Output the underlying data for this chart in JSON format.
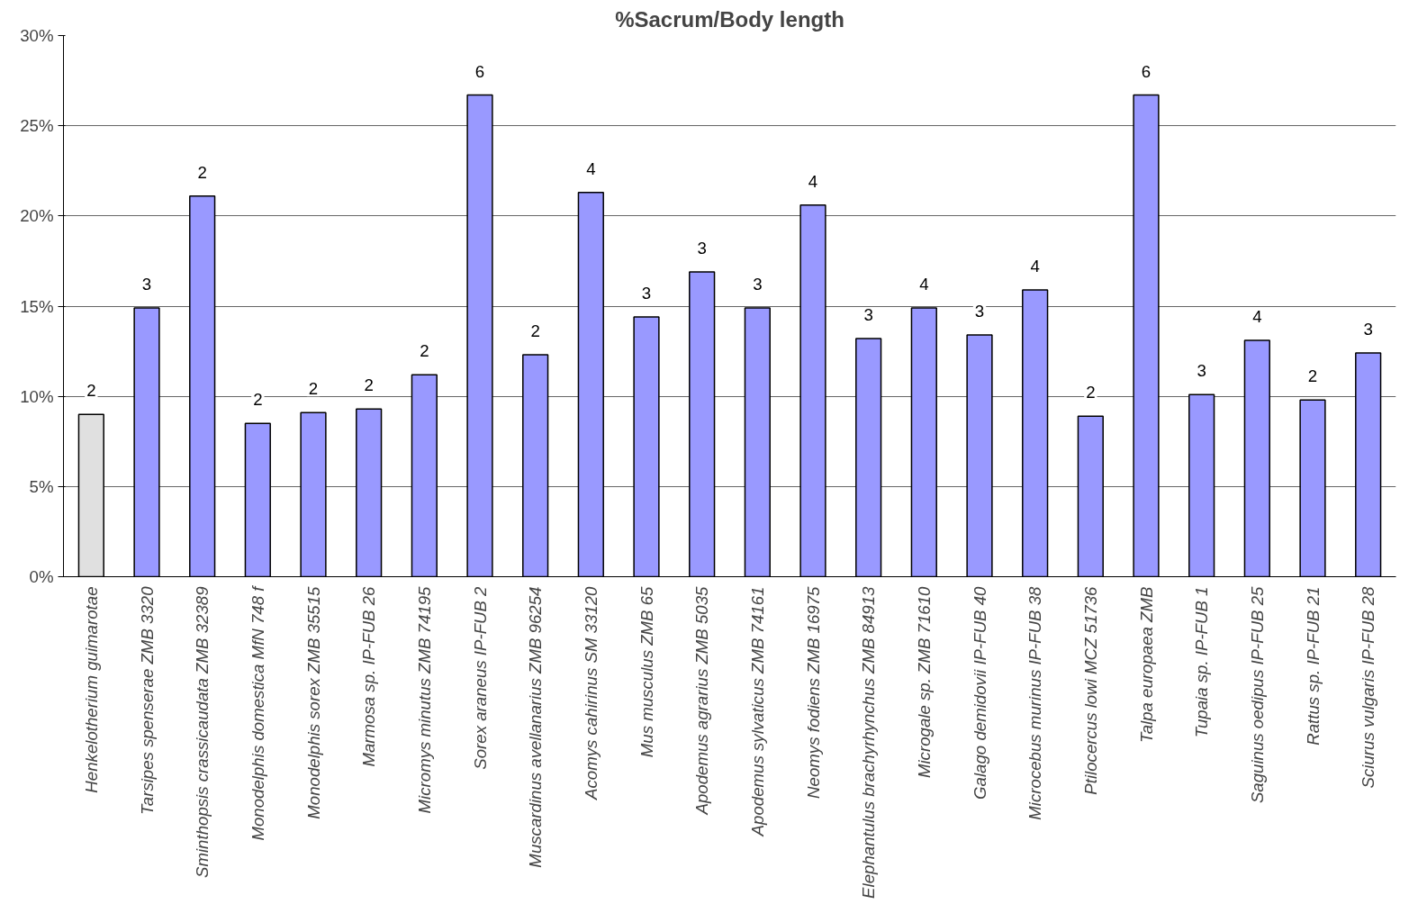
{
  "chart_data": {
    "type": "bar",
    "title": "%Sacrum/Body length",
    "categories": [
      "Henkelotherium guimarotae",
      "Tarsipes spenserae ZMB 3320",
      "Sminthopsis crassicaudata ZMB 32389",
      "Monodelphis domestica MfN 748 f",
      "Monodelphis sorex ZMB 35515",
      "Marmosa sp. IP-FUB 26",
      "Micromys minutus ZMB 74195",
      "Sorex araneus IP-FUB 2",
      "Muscardinus avellanarius ZMB 96254",
      "Acomys cahirinus SM 33120",
      "Mus musculus ZMB 65",
      "Apodemus agrarius ZMB 5035",
      "Apodemus sylvaticus ZMB 74161",
      "Neomys fodiens ZMB 16975",
      "Elephantulus brachyrhynchus ZMB 84913",
      "Microgale sp. ZMB 71610",
      "Galago demidovii IP-FUB 40",
      "Microcebus murinus IP-FUB 38",
      "Ptilocercus lowi MCZ 51736",
      "Talpa europaea ZMB",
      "Tupaia sp. IP-FUB 1",
      "Saguinus oedipus IP-FUB 25",
      "Rattus sp. IP-FUB 21",
      "Sciurus vulgaris IP-FUB 28"
    ],
    "values": [
      9.0,
      14.9,
      21.1,
      8.5,
      9.1,
      9.3,
      11.2,
      26.7,
      12.3,
      21.3,
      14.4,
      16.9,
      14.9,
      20.6,
      13.2,
      14.9,
      13.4,
      15.9,
      8.9,
      26.7,
      10.1,
      13.1,
      9.8,
      12.4
    ],
    "annotations": [
      {
        "text": "2",
        "x": "Henkelotherium guimarotae",
        "y": 9.0
      },
      {
        "text": "3",
        "x": "Tarsipes spenserae ZMB 3320",
        "y": 14.9
      },
      {
        "text": "2",
        "x": "Sminthopsis crassicaudata ZMB 32389",
        "y": 21.1
      },
      {
        "text": "2",
        "x": "Monodelphis domestica MfN 748 f",
        "y": 8.5
      },
      {
        "text": "2",
        "x": "Monodelphis sorex ZMB 35515",
        "y": 9.1
      },
      {
        "text": "2",
        "x": "Marmosa sp. IP-FUB 26",
        "y": 9.3
      },
      {
        "text": "2",
        "x": "Micromys minutus ZMB 74195",
        "y": 11.2
      },
      {
        "text": "6",
        "x": "Sorex araneus IP-FUB 2",
        "y": 26.7
      },
      {
        "text": "2",
        "x": "Muscardinus avellanarius ZMB 96254",
        "y": 12.3
      },
      {
        "text": "4",
        "x": "Acomys cahirinus SM 33120",
        "y": 21.3
      },
      {
        "text": "3",
        "x": "Mus musculus ZMB 65",
        "y": 14.4
      },
      {
        "text": "3",
        "x": "Apodemus agrarius ZMB 5035",
        "y": 16.9
      },
      {
        "text": "3",
        "x": "Apodemus sylvaticus ZMB 74161",
        "y": 14.9
      },
      {
        "text": "4",
        "x": "Neomys fodiens ZMB 16975",
        "y": 20.6
      },
      {
        "text": "3",
        "x": "Elephantulus brachyrhynchus ZMB 84913",
        "y": 13.2
      },
      {
        "text": "4",
        "x": "Microgale sp. ZMB 71610",
        "y": 14.9
      },
      {
        "text": "3",
        "x": "Galago demidovii IP-FUB 40",
        "y": 13.4
      },
      {
        "text": "4",
        "x": "Microcebus murinus IP-FUB 38",
        "y": 15.9
      },
      {
        "text": "2",
        "x": "Ptilocercus lowi MCZ 51736",
        "y": 8.9
      },
      {
        "text": "6",
        "x": "Talpa europaea ZMB",
        "y": 26.7
      },
      {
        "text": "3",
        "x": "Tupaia sp. IP-FUB 1",
        "y": 10.1
      },
      {
        "text": "4",
        "x": "Saguinus oedipus IP-FUB 25",
        "y": 13.1
      },
      {
        "text": "2",
        "x": "Rattus sp. IP-FUB 21",
        "y": 9.8
      },
      {
        "text": "3",
        "x": "Sciurus vulgaris IP-FUB 28",
        "y": 12.4
      }
    ],
    "colors": [
      "#e0e0e0",
      "#9999ff",
      "#9999ff",
      "#9999ff",
      "#9999ff",
      "#9999ff",
      "#9999ff",
      "#9999ff",
      "#9999ff",
      "#9999ff",
      "#9999ff",
      "#9999ff",
      "#9999ff",
      "#9999ff",
      "#9999ff",
      "#9999ff",
      "#9999ff",
      "#9999ff",
      "#9999ff",
      "#9999ff",
      "#9999ff",
      "#9999ff",
      "#9999ff",
      "#9999ff"
    ],
    "ylim": [
      0,
      30
    ],
    "yticks": [
      {
        "value": 0,
        "label": "0%"
      },
      {
        "value": 5,
        "label": "5%"
      },
      {
        "value": 10,
        "label": "10%"
      },
      {
        "value": 15,
        "label": "15%"
      },
      {
        "value": 20,
        "label": "20%"
      },
      {
        "value": 25,
        "label": "25%"
      },
      {
        "value": 30,
        "label": "30%"
      }
    ],
    "grid": "y"
  }
}
